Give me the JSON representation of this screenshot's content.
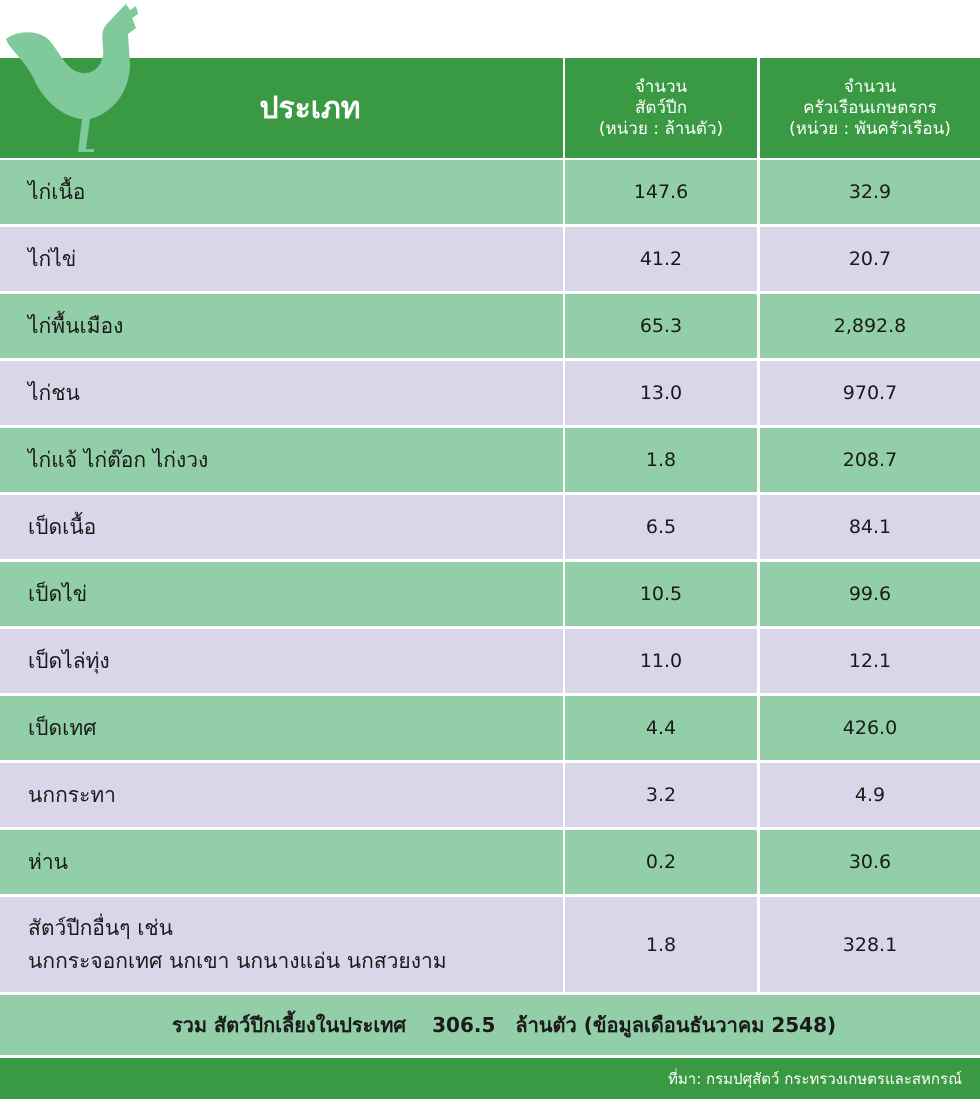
{
  "header": {
    "title": "ประเภท",
    "columns": [
      [
        "จำนวน",
        "สัตว์ปีก",
        "(หน่วย : ล้านตัว)"
      ],
      [
        "จำนวน",
        "ครัวเรือนเกษตรกร",
        "(หน่วย : พันครัวเรือน)"
      ]
    ]
  },
  "table": {
    "rows": [
      [
        [
          "ไก่เนื้อ"
        ],
        "147.6",
        "32.9"
      ],
      [
        [
          "ไก่ไข่"
        ],
        "41.2",
        "20.7"
      ],
      [
        [
          "ไก่พื้นเมือง"
        ],
        "65.3",
        "2,892.8"
      ],
      [
        [
          "ไก่ชน"
        ],
        "13.0",
        "970.7"
      ],
      [
        [
          "ไก่แจ้ ไก่ต๊อก ไก่งวง"
        ],
        "1.8",
        "208.7"
      ],
      [
        [
          "เป็ดเนื้อ"
        ],
        "6.5",
        "84.1"
      ],
      [
        [
          "เป็ดไข่"
        ],
        "10.5",
        "99.6"
      ],
      [
        [
          "เป็ดไล่ทุ่ง"
        ],
        "11.0",
        "12.1"
      ],
      [
        [
          "เป็ดเทศ"
        ],
        "4.4",
        "426.0"
      ],
      [
        [
          "นกกระทา"
        ],
        "3.2",
        "4.9"
      ],
      [
        [
          "ห่าน"
        ],
        "0.2",
        "30.6"
      ],
      [
        [
          "สัตว์ปีกอื่นๆ เช่น",
          "นกกระจอกเทศ นกเขา นกนางแอ่น นกสวยงาม"
        ],
        "1.8",
        "328.1"
      ]
    ]
  },
  "summary": {
    "label": "รวม สัตว์ปีกเลี้ยงในประเทศ",
    "value": "306.5",
    "unit": "ล้านตัว (ข้อมูลเดือนธันวาคม 2548)"
  },
  "source": "ที่มา: กรมปศุสัตว์ กระทรวงเกษตรและสหกรณ์"
}
